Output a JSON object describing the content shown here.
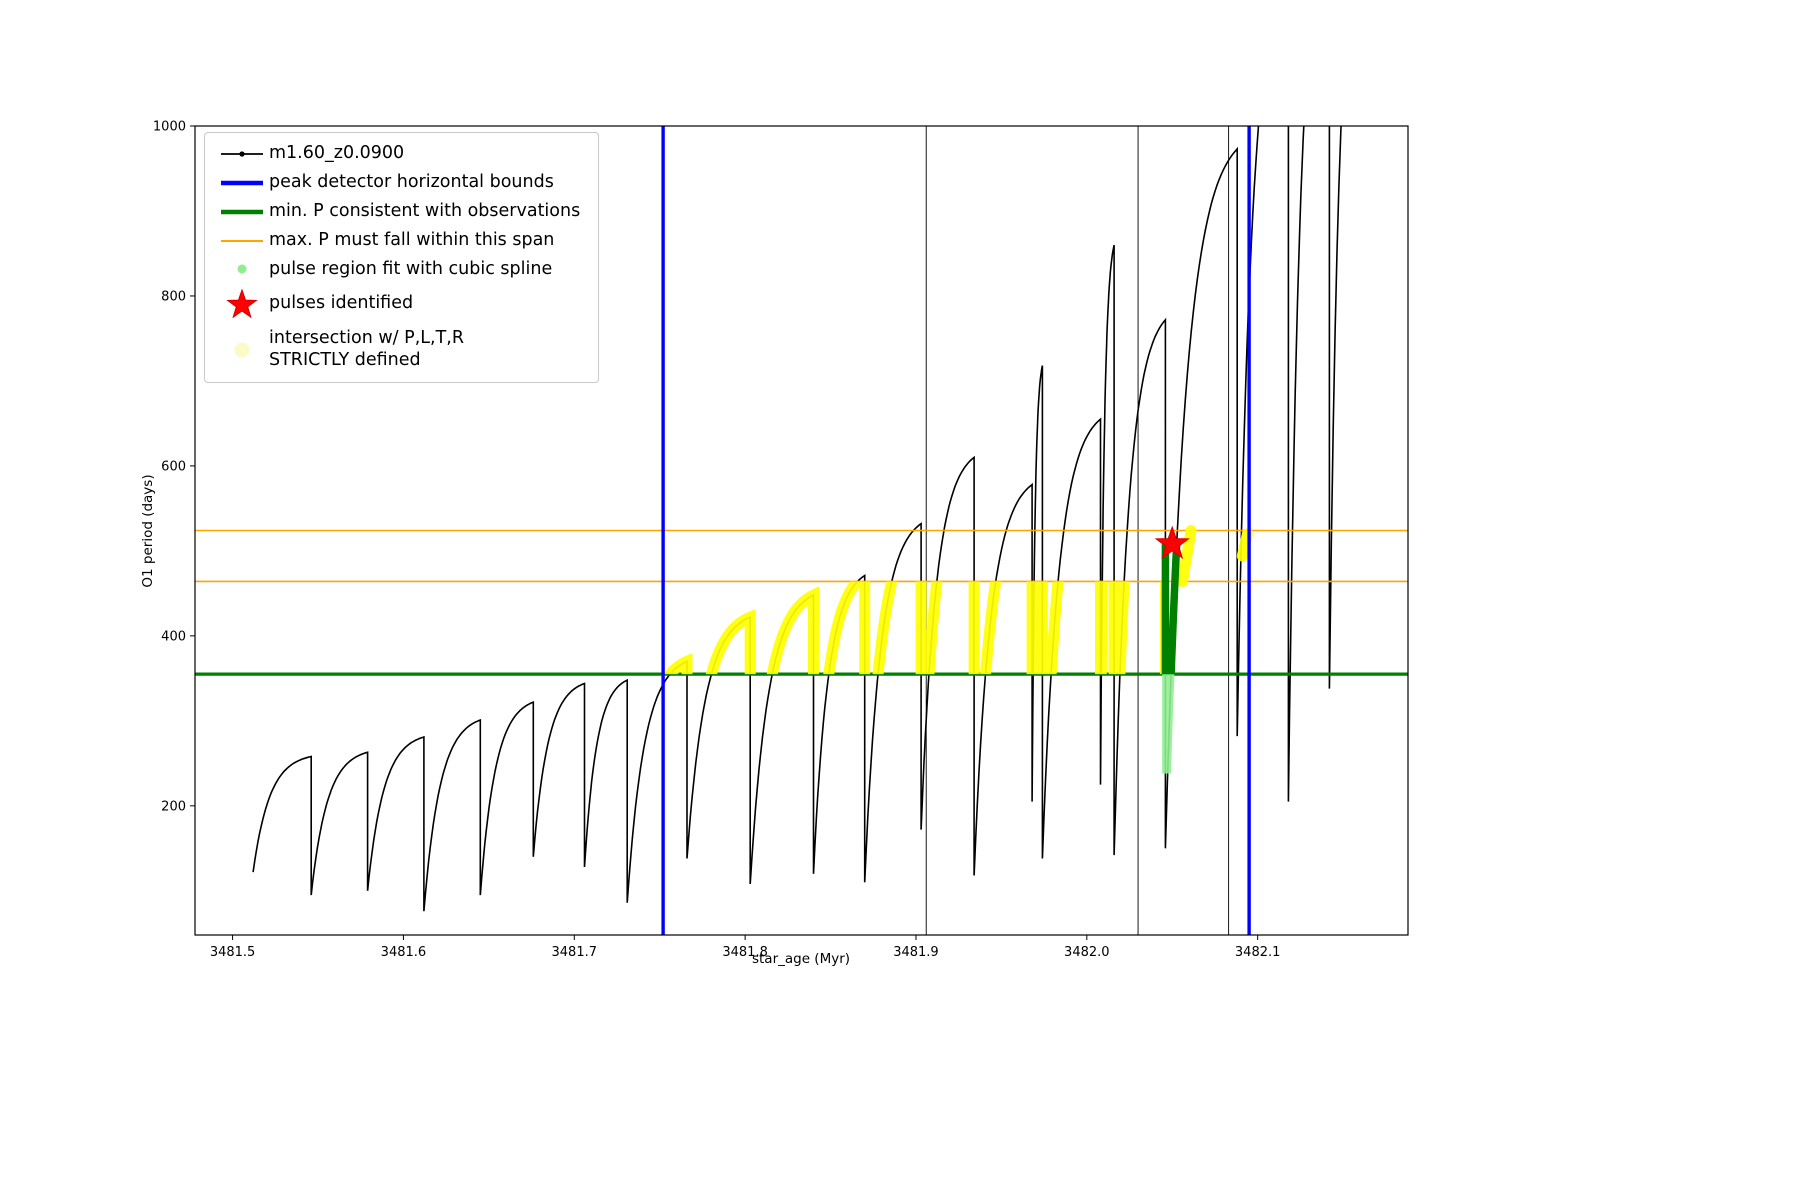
{
  "chart_data": {
    "type": "line",
    "title": "",
    "xlabel": "star_age (Myr)",
    "ylabel": "O1 period (days)",
    "xlim": [
      3481.478,
      3482.188
    ],
    "ylim": [
      48,
      1000
    ],
    "xtick_values": [
      3481.5,
      3481.6,
      3481.7,
      3481.8,
      3481.9,
      3482.0,
      3482.1
    ],
    "xtick_labels": [
      "3481.5",
      "3481.6",
      "3481.7",
      "3481.8",
      "3481.9",
      "3482.0",
      "3482.1"
    ],
    "ytick_values": [
      200,
      400,
      600,
      800,
      1000
    ],
    "ytick_labels": [
      "200",
      "400",
      "600",
      "800",
      "1000"
    ],
    "grid": false,
    "legend_position": "upper-left",
    "series_name": "m1.60_z0.0900",
    "cycles_note": "each cycle = [x_start, x_end, y_start, y_peak]; curve rises saturating then drops vertically to next cycle start",
    "cycles": [
      [
        3481.512,
        3481.546,
        122,
        258
      ],
      [
        3481.546,
        3481.579,
        95,
        263
      ],
      [
        3481.579,
        3481.612,
        100,
        281
      ],
      [
        3481.612,
        3481.645,
        76,
        301
      ],
      [
        3481.645,
        3481.676,
        95,
        322
      ],
      [
        3481.676,
        3481.706,
        140,
        344
      ],
      [
        3481.706,
        3481.731,
        128,
        348
      ],
      [
        3481.731,
        3481.766,
        86,
        370
      ],
      [
        3481.766,
        3481.803,
        138,
        422
      ],
      [
        3481.803,
        3481.84,
        108,
        448
      ],
      [
        3481.84,
        3481.87,
        120,
        471
      ],
      [
        3481.87,
        3481.903,
        110,
        532
      ],
      [
        3481.903,
        3481.934,
        172,
        610
      ],
      [
        3481.934,
        3481.968,
        118,
        578
      ],
      [
        3481.968,
        3481.974,
        205,
        718
      ],
      [
        3481.974,
        3482.008,
        138,
        655
      ],
      [
        3482.008,
        3482.016,
        225,
        860
      ],
      [
        3482.016,
        3482.046,
        142,
        772
      ],
      [
        3482.046,
        3482.088,
        150,
        973
      ],
      [
        3482.088,
        3482.118,
        282,
        1190
      ],
      [
        3482.118,
        3482.142,
        205,
        1260
      ],
      [
        3482.142,
        3482.162,
        338,
        1260
      ]
    ],
    "spikes_x": [
      3481.906,
      3482.03,
      3482.083
    ],
    "blue_vlines": [
      3481.752,
      3482.095
    ],
    "green_hline": 355,
    "orange_hlines": [
      464,
      524
    ],
    "yellow_band": {
      "x0": 3481.748,
      "x1": 3482.045,
      "y0": 355,
      "y1": 464
    },
    "yellow_extra_segments": [
      {
        "x0": 3482.056,
        "y0": 464,
        "x1": 3482.061,
        "y1": 524
      },
      {
        "x0": 3482.091,
        "y0": 494,
        "x1": 3482.094,
        "y1": 520
      }
    ],
    "green_segment": {
      "x0": 3482.042,
      "x1": 3482.058,
      "y0": 355,
      "y1": 508
    },
    "spline_segment": {
      "x0": 3482.042,
      "x1": 3482.058,
      "y0": 238,
      "y1": 355
    },
    "star": {
      "x": 3482.05,
      "y": 508
    },
    "colors": {
      "series": "#000000",
      "blue": "#0000ff",
      "green": "#008000",
      "orange": "#ffa500",
      "yellow": "#ffff00",
      "spline": "#90ee90",
      "star": "#ff0000",
      "pale_yellow": "#fbfbc8"
    }
  },
  "legend": {
    "items": [
      {
        "name": "series",
        "marker": "line-dot",
        "color": "#000000",
        "label": "m1.60_z0.0900"
      },
      {
        "name": "peak-detector-bounds",
        "marker": "thick-line",
        "color": "#0000ff",
        "label": "peak detector horizontal bounds"
      },
      {
        "name": "min-p-consistent",
        "marker": "thick-line",
        "color": "#008000",
        "label": "min. P consistent with observations"
      },
      {
        "name": "max-p-span",
        "marker": "thin-line",
        "color": "#ffa500",
        "label": "max. P must fall within this span"
      },
      {
        "name": "pulse-region-spline",
        "marker": "dot-small",
        "color": "#90ee90",
        "label": "pulse region fit with cubic spline"
      },
      {
        "name": "pulses-identified",
        "marker": "star",
        "color": "#ff0000",
        "label": "pulses identified"
      },
      {
        "name": "intersection-strict",
        "marker": "dot-large",
        "color": "#fbfbc8",
        "label": "intersection w/ P,L,T,R\nSTRICTLY defined"
      }
    ]
  }
}
